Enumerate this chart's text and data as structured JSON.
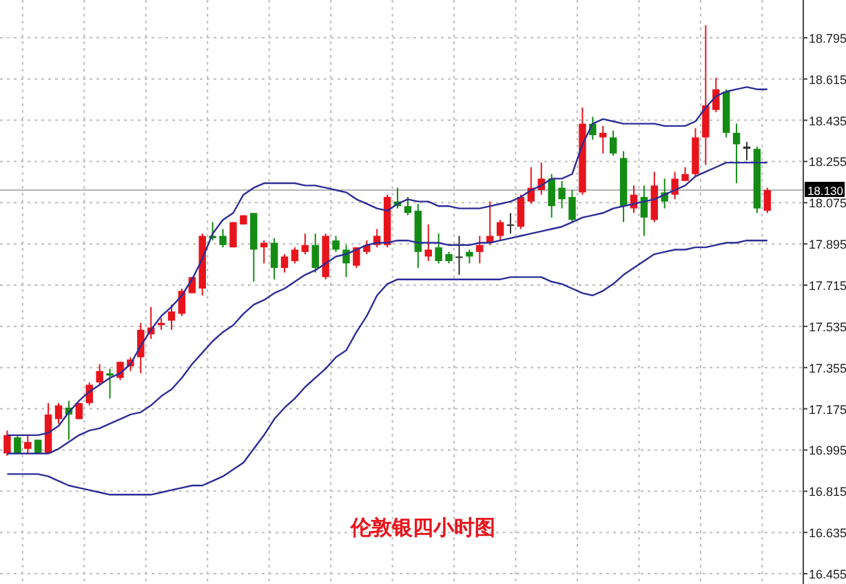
{
  "chart_data": {
    "type": "candlestick",
    "title": "伦敦银四小时图",
    "categories": [
      null,
      null,
      null,
      null,
      null,
      null,
      null,
      null,
      null,
      null,
      null,
      null,
      null,
      null,
      null,
      null,
      null,
      null,
      null,
      null,
      null,
      null,
      null,
      null,
      null,
      null,
      null,
      null,
      null,
      null,
      null,
      null,
      null,
      null,
      null,
      null,
      null,
      null,
      null,
      null,
      null,
      null,
      null,
      null,
      null,
      null,
      null,
      null,
      null,
      null,
      null,
      null,
      null,
      null,
      null,
      null,
      null,
      null,
      null,
      null,
      null,
      null,
      null,
      null,
      null,
      null,
      null,
      null,
      null,
      null,
      null,
      null,
      null,
      null,
      null
    ],
    "ohlc": [
      [
        16.98,
        17.08,
        16.97,
        17.06
      ],
      [
        17.05,
        17.06,
        16.98,
        16.98
      ],
      [
        17.0,
        17.06,
        16.98,
        17.03
      ],
      [
        17.04,
        17.04,
        16.98,
        16.98
      ],
      [
        16.98,
        17.2,
        16.98,
        17.15
      ],
      [
        17.13,
        17.2,
        17.11,
        17.19
      ],
      [
        17.18,
        17.21,
        17.04,
        17.15
      ],
      [
        17.13,
        17.2,
        17.13,
        17.2
      ],
      [
        17.2,
        17.29,
        17.19,
        17.28
      ],
      [
        17.29,
        17.37,
        17.28,
        17.34
      ],
      [
        17.33,
        17.35,
        17.22,
        17.32
      ],
      [
        17.31,
        17.38,
        17.3,
        17.38
      ],
      [
        17.36,
        17.4,
        17.34,
        17.39
      ],
      [
        17.4,
        17.55,
        17.33,
        17.52
      ],
      [
        17.5,
        17.62,
        17.48,
        17.53
      ],
      [
        17.54,
        17.57,
        17.52,
        17.55
      ],
      [
        17.56,
        17.63,
        17.52,
        17.6
      ],
      [
        17.59,
        17.7,
        17.58,
        17.69
      ],
      [
        17.68,
        17.75,
        17.68,
        17.75
      ],
      [
        17.7,
        17.94,
        17.67,
        17.93
      ],
      [
        17.93,
        17.99,
        17.91,
        17.92
      ],
      [
        17.93,
        17.96,
        17.88,
        17.89
      ],
      [
        17.88,
        17.99,
        17.88,
        17.99
      ],
      [
        17.98,
        18.02,
        17.98,
        18.02
      ],
      [
        18.03,
        18.03,
        17.73,
        17.87
      ],
      [
        17.88,
        17.91,
        17.81,
        17.9
      ],
      [
        17.9,
        17.92,
        17.74,
        17.79
      ],
      [
        17.79,
        17.85,
        17.77,
        17.84
      ],
      [
        17.82,
        17.88,
        17.81,
        17.87
      ],
      [
        17.86,
        17.94,
        17.85,
        17.89
      ],
      [
        17.89,
        17.94,
        17.77,
        17.79
      ],
      [
        17.75,
        17.94,
        17.74,
        17.93
      ],
      [
        17.91,
        17.93,
        17.86,
        17.87
      ],
      [
        17.87,
        17.89,
        17.75,
        17.81
      ],
      [
        17.8,
        17.88,
        17.79,
        17.88
      ],
      [
        17.86,
        17.91,
        17.85,
        17.89
      ],
      [
        17.89,
        17.96,
        17.88,
        17.93
      ],
      [
        17.89,
        18.11,
        17.88,
        18.1
      ],
      [
        18.08,
        18.14,
        18.05,
        18.06
      ],
      [
        18.06,
        18.1,
        18.02,
        18.03
      ],
      [
        18.04,
        18.07,
        17.79,
        17.86
      ],
      [
        17.84,
        17.98,
        17.82,
        17.87
      ],
      [
        17.88,
        17.94,
        17.81,
        17.82
      ],
      [
        17.85,
        17.86,
        17.81,
        17.82
      ],
      [
        17.84,
        17.93,
        17.76,
        17.84
      ],
      [
        17.86,
        17.87,
        17.81,
        17.84
      ],
      [
        17.86,
        17.93,
        17.81,
        17.89
      ],
      [
        17.9,
        18.08,
        17.89,
        17.93
      ],
      [
        17.93,
        18.0,
        17.91,
        17.99
      ],
      [
        17.98,
        18.03,
        17.94,
        17.98
      ],
      [
        17.97,
        18.11,
        17.96,
        18.1
      ],
      [
        18.08,
        18.23,
        18.07,
        18.14
      ],
      [
        18.13,
        18.25,
        18.11,
        18.18
      ],
      [
        18.18,
        18.2,
        18.01,
        18.06
      ],
      [
        18.14,
        18.17,
        18.05,
        18.09
      ],
      [
        18.1,
        18.13,
        17.99,
        18.0
      ],
      [
        18.12,
        18.49,
        18.11,
        18.42
      ],
      [
        18.42,
        18.45,
        18.35,
        18.37
      ],
      [
        18.36,
        18.41,
        18.29,
        18.38
      ],
      [
        18.36,
        18.39,
        18.28,
        18.29
      ],
      [
        18.27,
        18.3,
        17.99,
        18.06
      ],
      [
        18.05,
        18.15,
        18.03,
        18.11
      ],
      [
        18.1,
        18.15,
        17.93,
        18.01
      ],
      [
        18.0,
        18.21,
        17.99,
        18.15
      ],
      [
        18.12,
        18.18,
        18.05,
        18.08
      ],
      [
        18.11,
        18.21,
        18.09,
        18.18
      ],
      [
        18.17,
        18.23,
        18.17,
        18.2
      ],
      [
        18.2,
        18.4,
        18.19,
        18.36
      ],
      [
        18.36,
        18.85,
        18.24,
        18.5
      ],
      [
        18.48,
        18.62,
        18.47,
        18.57
      ],
      [
        18.56,
        18.57,
        18.36,
        18.38
      ],
      [
        18.38,
        18.42,
        18.16,
        18.33
      ],
      [
        18.32,
        18.34,
        18.26,
        18.31
      ],
      [
        18.31,
        18.32,
        18.03,
        18.05
      ],
      [
        18.04,
        18.14,
        18.03,
        18.13
      ]
    ],
    "colors": [
      "#e8141c",
      "#148c14",
      "#e8141c",
      "#148c14",
      "#e8141c",
      "#e8141c",
      "#148c14",
      "#e8141c",
      "#e8141c",
      "#e8141c",
      "#148c14",
      "#e8141c",
      "#e8141c",
      "#e8141c",
      "#e8141c",
      "#e8141c",
      "#e8141c",
      "#e8141c",
      "#e8141c",
      "#e8141c",
      "#148c14",
      "#148c14",
      "#e8141c",
      "#e8141c",
      "#148c14",
      "#e8141c",
      "#148c14",
      "#e8141c",
      "#e8141c",
      "#e8141c",
      "#148c14",
      "#e8141c",
      "#148c14",
      "#148c14",
      "#e8141c",
      "#e8141c",
      "#e8141c",
      "#e8141c",
      "#148c14",
      "#148c14",
      "#148c14",
      "#e8141c",
      "#148c14",
      "#148c14",
      "#333333",
      "#148c14",
      "#e8141c",
      "#e8141c",
      "#e8141c",
      "#333333",
      "#e8141c",
      "#e8141c",
      "#e8141c",
      "#148c14",
      "#148c14",
      "#148c14",
      "#e8141c",
      "#148c14",
      "#e8141c",
      "#148c14",
      "#148c14",
      "#e8141c",
      "#148c14",
      "#e8141c",
      "#148c14",
      "#e8141c",
      "#e8141c",
      "#e8141c",
      "#e8141c",
      "#e8141c",
      "#148c14",
      "#148c14",
      "#333333",
      "#148c14",
      "#e8141c"
    ],
    "series": [
      {
        "type": "line",
        "color": "#2d2d96",
        "values": [
          17.06,
          17.06,
          17.06,
          17.06,
          17.07,
          17.1,
          17.16,
          17.21,
          17.25,
          17.28,
          17.31,
          17.33,
          17.37,
          17.45,
          17.52,
          17.58,
          17.62,
          17.67,
          17.74,
          17.83,
          17.94,
          18.0,
          18.03,
          18.11,
          18.14,
          18.16,
          18.16,
          18.16,
          18.16,
          18.15,
          18.15,
          18.14,
          18.13,
          18.12,
          18.09,
          18.07,
          18.05,
          18.04,
          18.07,
          18.09,
          18.08,
          18.08,
          18.06,
          18.06,
          18.05,
          18.05,
          18.05,
          18.06,
          18.07,
          18.08,
          18.1,
          18.13,
          18.15,
          18.18,
          18.18,
          18.2,
          18.33,
          18.42,
          18.44,
          18.43,
          18.42,
          18.42,
          18.42,
          18.42,
          18.41,
          18.41,
          18.41,
          18.43,
          18.49,
          18.54,
          18.56,
          18.57,
          18.58,
          18.57,
          18.57
        ]
      },
      {
        "type": "line",
        "color": "#2d2d96",
        "values": [
          16.98,
          16.98,
          16.98,
          16.98,
          16.98,
          17.0,
          17.03,
          17.06,
          17.08,
          17.09,
          17.11,
          17.13,
          17.15,
          17.16,
          17.19,
          17.23,
          17.26,
          17.31,
          17.37,
          17.42,
          17.47,
          17.51,
          17.54,
          17.59,
          17.63,
          17.65,
          17.68,
          17.7,
          17.73,
          17.76,
          17.78,
          17.81,
          17.84,
          17.85,
          17.87,
          17.89,
          17.9,
          17.9,
          17.91,
          17.91,
          17.9,
          17.9,
          17.9,
          17.89,
          17.89,
          17.89,
          17.9,
          17.9,
          17.91,
          17.92,
          17.93,
          17.94,
          17.95,
          17.96,
          17.97,
          17.99,
          18.01,
          18.02,
          18.03,
          18.05,
          18.06,
          18.07,
          18.08,
          18.09,
          18.11,
          18.13,
          18.15,
          18.19,
          18.21,
          18.23,
          18.25,
          18.25,
          18.25,
          18.25,
          18.25
        ]
      },
      {
        "type": "line",
        "color": "#2d2d96",
        "values": [
          16.89,
          16.89,
          16.89,
          16.89,
          16.88,
          16.86,
          16.84,
          16.83,
          16.82,
          16.81,
          16.8,
          16.8,
          16.8,
          16.8,
          16.8,
          16.81,
          16.82,
          16.83,
          16.84,
          16.84,
          16.86,
          16.88,
          16.91,
          16.94,
          17.0,
          17.06,
          17.13,
          17.18,
          17.22,
          17.27,
          17.31,
          17.35,
          17.4,
          17.43,
          17.51,
          17.58,
          17.67,
          17.72,
          17.74,
          17.74,
          17.74,
          17.74,
          17.74,
          17.74,
          17.74,
          17.74,
          17.74,
          17.74,
          17.74,
          17.75,
          17.75,
          17.75,
          17.75,
          17.73,
          17.72,
          17.7,
          17.68,
          17.67,
          17.69,
          17.72,
          17.76,
          17.79,
          17.82,
          17.85,
          17.86,
          17.87,
          17.87,
          17.88,
          17.88,
          17.89,
          17.9,
          17.9,
          17.91,
          17.91,
          17.91
        ]
      }
    ],
    "ylim": [
      16.41,
      18.96
    ],
    "yticks": [
      16.455,
      16.635,
      16.815,
      16.995,
      17.175,
      17.355,
      17.535,
      17.715,
      17.895,
      18.075,
      18.255,
      18.435,
      18.615,
      18.795
    ],
    "ref_lines": [
      {
        "axis": "y",
        "value": 18.13,
        "label": "18.130",
        "color": "#b4b4b4"
      }
    ],
    "grid": true,
    "tick_labels": "y"
  }
}
